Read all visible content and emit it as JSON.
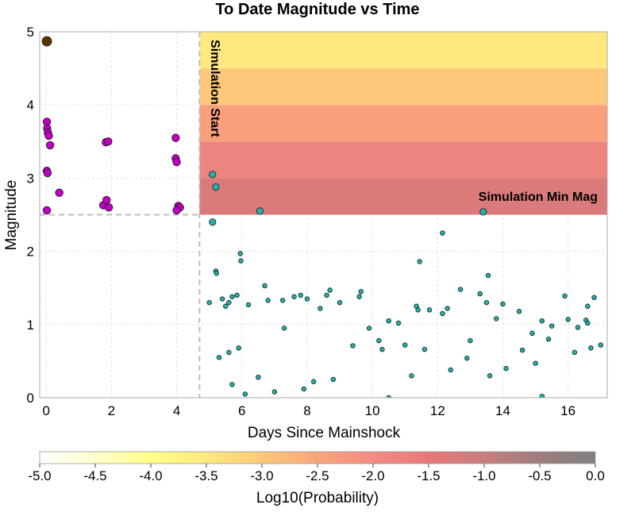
{
  "chart_data": {
    "type": "scatter",
    "title": "To Date Magnitude vs Time",
    "xlabel": "Days Since Mainshock",
    "ylabel": "Magnitude",
    "xlim": [
      -0.2,
      17.2
    ],
    "ylim": [
      0,
      5
    ],
    "xticks": [
      0,
      2,
      4,
      6,
      8,
      10,
      12,
      14,
      16
    ],
    "yticks": [
      0,
      1,
      2,
      3,
      4,
      5
    ],
    "grid": true,
    "annotations": {
      "simulation_start": "Simulation Start",
      "simulation_min_mag": "Simulation Min Mag",
      "simulation_start_day": 4.7,
      "simulation_min_mag_value": 2.5
    },
    "colorbar": {
      "label": "Log10(Probability)",
      "ticks": [
        "-5.0",
        "-4.5",
        "-4.0",
        "-3.5",
        "-3.0",
        "-2.5",
        "-2.0",
        "-1.5",
        "-1.0",
        "-0.5",
        "0.0"
      ],
      "range": [
        -5.0,
        0.0
      ],
      "colors": [
        "#ffffff",
        "#ffffcc",
        "#ffff88",
        "#ffe880",
        "#fdc87a",
        "#f9a57a",
        "#f28c84",
        "#e87878",
        "#c77e7e",
        "#a07c7c",
        "#808080"
      ]
    },
    "forecast_bands": [
      {
        "mag_low": 2.5,
        "mag_high": 3.0,
        "log10_prob": -1.3
      },
      {
        "mag_low": 3.0,
        "mag_high": 3.5,
        "log10_prob": -1.8
      },
      {
        "mag_low": 3.5,
        "mag_high": 4.0,
        "log10_prob": -2.4
      },
      {
        "mag_low": 4.0,
        "mag_high": 4.5,
        "log10_prob": -3.0
      },
      {
        "mag_low": 4.5,
        "mag_high": 5.0,
        "log10_prob": -3.5
      }
    ],
    "series": [
      {
        "role": "mainshock",
        "color": "#5a3000",
        "points": [
          [
            0.02,
            4.87
          ]
        ]
      },
      {
        "role": "aftershocks_before_simulation",
        "color": "#c000c0",
        "points": [
          [
            0.02,
            3.77
          ],
          [
            0.03,
            3.68
          ],
          [
            0.05,
            3.62
          ],
          [
            0.08,
            3.58
          ],
          [
            0.12,
            3.45
          ],
          [
            0.02,
            3.1
          ],
          [
            0.04,
            3.07
          ],
          [
            0.02,
            2.56
          ],
          [
            0.4,
            2.8
          ],
          [
            1.75,
            2.63
          ],
          [
            1.83,
            3.49
          ],
          [
            1.9,
            3.5
          ],
          [
            1.85,
            2.7
          ],
          [
            1.92,
            2.6
          ],
          [
            3.97,
            3.55
          ],
          [
            3.97,
            3.27
          ],
          [
            4.0,
            3.22
          ],
          [
            4.05,
            2.62
          ],
          [
            4.1,
            2.6
          ],
          [
            4.0,
            2.56
          ]
        ]
      },
      {
        "role": "aftershocks_after_simulation_large",
        "color": "#20b2aa",
        "points": [
          [
            5.1,
            3.05
          ],
          [
            5.2,
            2.88
          ],
          [
            5.1,
            2.4
          ],
          [
            6.55,
            2.55
          ],
          [
            13.4,
            2.54
          ]
        ]
      },
      {
        "role": "aftershocks_after_simulation_small",
        "color": "#20b2aa",
        "points": [
          [
            5.95,
            1.97
          ],
          [
            5.97,
            1.87
          ],
          [
            5.2,
            1.73
          ],
          [
            5.22,
            1.7
          ],
          [
            6.7,
            1.53
          ],
          [
            12.15,
            2.25
          ],
          [
            11.45,
            1.86
          ],
          [
            13.55,
            1.67
          ],
          [
            12.7,
            1.48
          ],
          [
            13.3,
            1.42
          ],
          [
            13.5,
            1.3
          ],
          [
            8.7,
            1.47
          ],
          [
            8.6,
            1.4
          ],
          [
            9.65,
            1.45
          ],
          [
            9.6,
            1.38
          ],
          [
            16.8,
            1.37
          ],
          [
            15.9,
            1.39
          ],
          [
            16.6,
            1.25
          ],
          [
            7.8,
            1.4
          ],
          [
            8.0,
            1.35
          ],
          [
            5.0,
            1.3
          ],
          [
            5.4,
            1.35
          ],
          [
            5.5,
            1.25
          ],
          [
            5.6,
            1.3
          ],
          [
            5.7,
            1.38
          ],
          [
            5.85,
            1.4
          ],
          [
            6.2,
            1.27
          ],
          [
            6.8,
            1.33
          ],
          [
            7.25,
            1.33
          ],
          [
            7.6,
            1.38
          ],
          [
            8.4,
            1.22
          ],
          [
            9.0,
            1.3
          ],
          [
            11.35,
            1.25
          ],
          [
            11.4,
            1.2
          ],
          [
            11.75,
            1.2
          ],
          [
            12.15,
            1.15
          ],
          [
            12.3,
            1.22
          ],
          [
            14.0,
            1.28
          ],
          [
            14.5,
            1.18
          ],
          [
            16.0,
            1.07
          ],
          [
            16.55,
            1.06
          ],
          [
            16.6,
            1.02
          ],
          [
            10.5,
            1.05
          ],
          [
            10.8,
            1.02
          ],
          [
            9.9,
            0.95
          ],
          [
            7.3,
            0.95
          ],
          [
            13.8,
            1.08
          ],
          [
            15.5,
            0.98
          ],
          [
            15.2,
            1.05
          ],
          [
            14.9,
            0.88
          ],
          [
            16.3,
            0.96
          ],
          [
            17.0,
            0.72
          ],
          [
            16.7,
            0.68
          ],
          [
            16.2,
            0.62
          ],
          [
            15.4,
            0.8
          ],
          [
            13.0,
            0.78
          ],
          [
            12.9,
            0.54
          ],
          [
            11.6,
            0.66
          ],
          [
            11.0,
            0.72
          ],
          [
            10.3,
            0.66
          ],
          [
            10.2,
            0.78
          ],
          [
            9.4,
            0.71
          ],
          [
            14.6,
            0.65
          ],
          [
            15.0,
            0.47
          ],
          [
            14.1,
            0.4
          ],
          [
            12.4,
            0.38
          ],
          [
            13.6,
            0.3
          ],
          [
            11.2,
            0.3
          ],
          [
            8.8,
            0.25
          ],
          [
            8.2,
            0.22
          ],
          [
            7.9,
            0.12
          ],
          [
            7.0,
            0.08
          ],
          [
            6.1,
            0.05
          ],
          [
            10.5,
            0.0
          ],
          [
            15.2,
            0.02
          ],
          [
            5.7,
            0.18
          ],
          [
            6.5,
            0.28
          ],
          [
            5.3,
            0.55
          ],
          [
            5.6,
            0.62
          ],
          [
            5.9,
            0.68
          ]
        ]
      }
    ]
  }
}
